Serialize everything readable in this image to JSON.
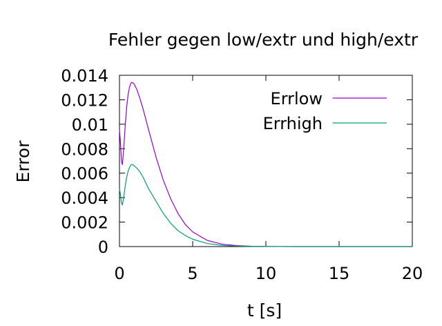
{
  "chart_data": {
    "type": "line",
    "title": "Fehler gegen low/extr und high/extr",
    "xlabel": "t [s]",
    "ylabel": "Error",
    "xlim": [
      0,
      20
    ],
    "ylim": [
      0,
      0.014
    ],
    "xticks": [
      0,
      5,
      10,
      15,
      20
    ],
    "xtick_labels": [
      "0",
      "5",
      "10",
      "15",
      "20"
    ],
    "yticks": [
      0,
      0.002,
      0.004,
      0.006,
      0.008,
      0.01,
      0.012,
      0.014
    ],
    "ytick_labels": [
      "0",
      "0.002",
      "0.004",
      "0.006",
      "0.008",
      "0.01",
      "0.012",
      "0.014"
    ],
    "grid": false,
    "legend_position": "top-right",
    "series": [
      {
        "name": "Errlow",
        "color": "#9400d3",
        "x": [
          0,
          0.05,
          0.1,
          0.15,
          0.2,
          0.3,
          0.4,
          0.5,
          0.6,
          0.7,
          0.8,
          0.9,
          1.0,
          1.2,
          1.4,
          1.6,
          1.8,
          2.0,
          2.5,
          3.0,
          3.5,
          4.0,
          4.5,
          5.0,
          6.0,
          7.0,
          8.0,
          9.0,
          10.0,
          12.0,
          15.0,
          20.0
        ],
        "y": [
          0.0095,
          0.0088,
          0.0078,
          0.0069,
          0.0067,
          0.0082,
          0.01,
          0.0115,
          0.0125,
          0.0131,
          0.0134,
          0.0134,
          0.0133,
          0.0128,
          0.0121,
          0.0113,
          0.0104,
          0.0095,
          0.0073,
          0.0054,
          0.0039,
          0.0027,
          0.0018,
          0.0012,
          0.0005,
          0.0002,
          8e-05,
          3e-05,
          1e-05,
          0,
          0,
          0
        ]
      },
      {
        "name": "Errhigh",
        "color": "#009e73",
        "x": [
          0,
          0.05,
          0.1,
          0.15,
          0.2,
          0.3,
          0.4,
          0.5,
          0.6,
          0.7,
          0.8,
          0.9,
          1.0,
          1.2,
          1.4,
          1.6,
          1.8,
          2.0,
          2.5,
          3.0,
          3.5,
          4.0,
          4.5,
          5.0,
          6.0,
          7.0,
          8.0,
          9.0,
          10.0,
          12.0,
          15.0,
          20.0
        ],
        "y": [
          0.0047,
          0.0044,
          0.0039,
          0.0035,
          0.0034,
          0.0041,
          0.005,
          0.0057,
          0.0062,
          0.0065,
          0.0067,
          0.0067,
          0.0066,
          0.0064,
          0.0061,
          0.0057,
          0.0052,
          0.0047,
          0.0037,
          0.0027,
          0.0019,
          0.0013,
          0.0009,
          0.0006,
          0.00025,
          0.0001,
          4e-05,
          2e-05,
          1e-05,
          0,
          0,
          0
        ]
      }
    ]
  }
}
